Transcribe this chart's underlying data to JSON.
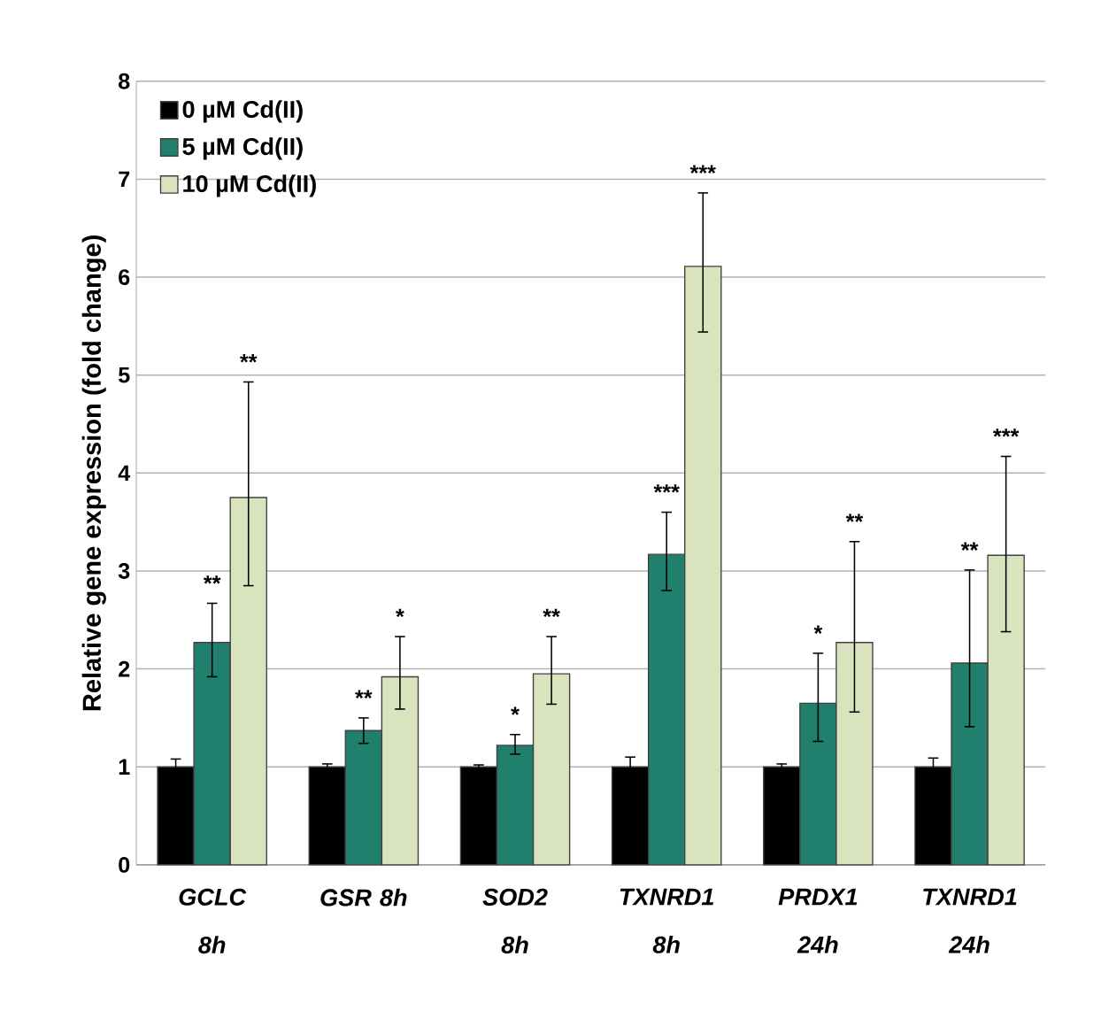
{
  "chart_data": {
    "type": "bar",
    "ylabel": "Relative gene expression (fold change)",
    "categories": [
      "GCLC 8h",
      "GSR 8h",
      "SOD2 8h",
      "TXNRD1 8h",
      "PRDX1 24h",
      "TXNRD1 24h"
    ],
    "series": [
      {
        "name": "0 µM Cd(II)",
        "color": "#000000",
        "values": [
          1,
          1,
          1,
          1,
          1,
          1
        ],
        "errors": [
          0.08,
          0.03,
          0.02,
          0.1,
          0.03,
          0.09
        ]
      },
      {
        "name": "5 µM Cd(II)",
        "color": "#217f6e",
        "values": [
          2.27,
          1.37,
          1.22,
          3.17,
          1.65,
          2.06
        ],
        "errors": [
          [
            1.92,
            2.67
          ],
          [
            1.24,
            1.5
          ],
          [
            1.13,
            1.33
          ],
          [
            2.8,
            3.6
          ],
          [
            1.26,
            2.16
          ],
          [
            1.41,
            3.01
          ]
        ]
      },
      {
        "name": "10 µM Cd(II)",
        "color": "#d9e4bf",
        "values": [
          3.75,
          1.92,
          1.95,
          6.11,
          2.27,
          3.16
        ],
        "errors": [
          [
            2.85,
            4.93
          ],
          [
            1.59,
            2.33
          ],
          [
            1.64,
            2.33
          ],
          [
            5.44,
            6.86
          ],
          [
            1.56,
            3.3
          ],
          [
            2.38,
            4.17
          ]
        ]
      }
    ],
    "ylim": [
      0,
      8
    ],
    "yticks": [
      0,
      1,
      2,
      3,
      4,
      5,
      6,
      7,
      8
    ],
    "grid": "y",
    "legend": "top left",
    "annotations": [
      "**",
      "**",
      "**",
      "*",
      "*",
      "**",
      "***",
      "***",
      "*",
      "**",
      "**",
      "***"
    ]
  }
}
